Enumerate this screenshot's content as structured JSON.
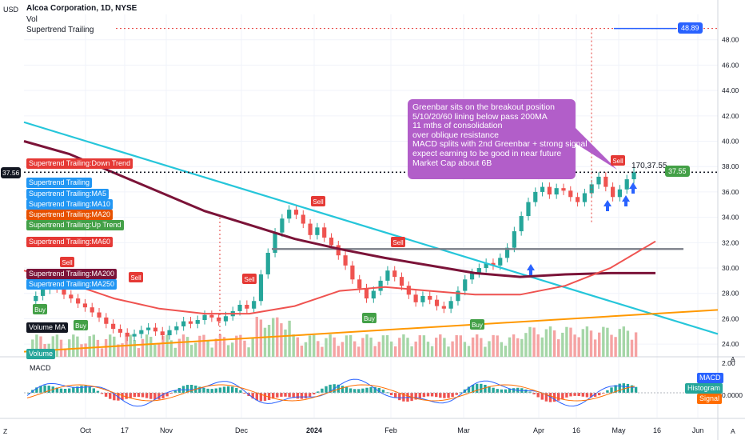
{
  "header": {
    "currency": "USD",
    "symbol_line": "Alcoa Corporation, 1D, NYSE",
    "indicator_vol": "Vol",
    "indicator_supertrend": "Supertrend Trailing"
  },
  "right_axis": {
    "ticks": [
      "48.00",
      "46.00",
      "44.00",
      "42.00",
      "40.00",
      "38.00",
      "36.00",
      "34.00",
      "32.00",
      "30.00",
      "28.00",
      "26.00",
      "24.00"
    ],
    "macd_ticks": [
      "2.00",
      "0.0000"
    ],
    "target_price": "48.89",
    "last_price": "37.55",
    "left_price": "37.56",
    "corner_label": "A"
  },
  "x_axis": {
    "labels": [
      "Oct",
      "17",
      "Nov",
      "Dec",
      "2024",
      "Feb",
      "Mar",
      "Apr",
      "16",
      "May",
      "16",
      "Jun"
    ],
    "corner_label": "Z"
  },
  "legend_tags": [
    {
      "text": "Supertrend Trailing:Down Trend",
      "color": "#e53935"
    },
    {
      "text": "Supertrend Trailing",
      "color": "#2196f3"
    },
    {
      "text": "Supertrend Trailing:MA5",
      "color": "#2196f3"
    },
    {
      "text": "Supertrend Trailing:MA10",
      "color": "#2196f3"
    },
    {
      "text": "Supertrend Trailing:MA20",
      "color": "#e65100"
    },
    {
      "text": "Supertrend Trailing:Up Trend",
      "color": "#43a047"
    },
    {
      "text": "Supertrend Trailing:MA60",
      "color": "#e53935"
    },
    {
      "text": "Supertrend Trailing:MA200",
      "color": "#7b1338"
    },
    {
      "text": "Supertrend Trailing:MA250",
      "color": "#2196f3"
    },
    {
      "text": "Volume MA",
      "color": "#131722"
    },
    {
      "text": "Volume",
      "color": "#26a69a"
    }
  ],
  "annotation": {
    "lines": [
      "Greenbar sits on the breakout position",
      "5/10/20/60 lining below pass 200MA",
      "11 mths of consolidation",
      "over oblique resistance",
      "MACD splits with 2nd Greenbar + strong signal",
      "expect earning to be good in near future",
      "Market Cap about 6B"
    ],
    "color": "#b25ec9"
  },
  "point_label": "170,37.55",
  "signals": {
    "buy_label": "Buy",
    "sell_label": "Sell"
  },
  "macd_panel": {
    "title": "MACD",
    "legend": [
      {
        "text": "MACD",
        "color": "#2962ff"
      },
      {
        "text": "Histogram",
        "color": "#26a69a"
      },
      {
        "text": "Signal",
        "color": "#ff6d00"
      }
    ]
  },
  "chart_data": {
    "type": "line",
    "title": "Alcoa Corporation, 1D, NYSE",
    "x_range": [
      "2023-09-20",
      "2024-06-15"
    ],
    "ylim": [
      23.0,
      50.0
    ],
    "grid": true,
    "price_closes": [
      27.4,
      27.8,
      28.3,
      28.6,
      28.4,
      27.9,
      27.6,
      27.2,
      26.9,
      26.5,
      26.1,
      25.6,
      25.2,
      24.9,
      24.6,
      24.8,
      25.1,
      25.3,
      25.0,
      24.7,
      25.1,
      25.4,
      25.8,
      25.6,
      25.9,
      26.3,
      26.1,
      25.8,
      26.2,
      26.6,
      27.1,
      26.8,
      27.4,
      29.5,
      31.2,
      32.8,
      33.9,
      34.6,
      34.2,
      33.5,
      32.6,
      33.2,
      32.4,
      31.8,
      31.0,
      30.2,
      29.1,
      28.4,
      27.6,
      28.2,
      29.0,
      29.8,
      29.3,
      28.6,
      27.9,
      27.3,
      27.8,
      27.5,
      27.0,
      26.8,
      27.4,
      28.2,
      29.1,
      29.6,
      30.0,
      30.4,
      30.2,
      30.8,
      31.6,
      32.9,
      34.1,
      35.2,
      36.0,
      36.4,
      35.8,
      36.3,
      36.1,
      35.6,
      35.2,
      35.9,
      36.6,
      37.2,
      36.4,
      35.6,
      36.2,
      37.0,
      37.55
    ],
    "series": [
      {
        "name": "Supertrend Trailing:MA200",
        "values": [
          40.0,
          39.0,
          37.5,
          36.0,
          34.5,
          33.4,
          32.3,
          31.5,
          30.8,
          30.2,
          29.6,
          29.3,
          29.5,
          29.6,
          29.6
        ]
      },
      {
        "name": "Supertrend Trailing:MA60",
        "values": [
          29.8,
          28.8,
          27.6,
          26.8,
          26.4,
          26.4,
          27.0,
          28.2,
          28.5,
          28.2,
          27.9,
          27.9,
          28.6,
          30.0,
          32.1
        ]
      }
    ],
    "trendlines": [
      {
        "from": [
          0,
          41.5
        ],
        "to": [
          1,
          24.8
        ]
      },
      {
        "from": [
          0,
          23.4
        ],
        "to": [
          1,
          26.7
        ]
      },
      {
        "level": 31.5
      }
    ],
    "target": 48.89,
    "last": 37.55
  }
}
